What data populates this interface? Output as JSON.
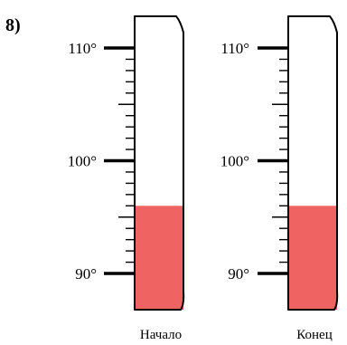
{
  "problem_number": "8)",
  "scale": {
    "tick_labels": [
      "110°",
      "100°",
      "90°"
    ],
    "major_values": [
      110,
      100,
      90
    ],
    "min_value": 90,
    "max_value": 110,
    "minor_step": 1
  },
  "thermometers": [
    {
      "caption": "Начало",
      "reading": 96
    },
    {
      "caption": "Конец",
      "reading": 96
    }
  ],
  "colors": {
    "liquid": "#ef6363",
    "outline": "#000000",
    "tube_background": "#ffffff"
  }
}
